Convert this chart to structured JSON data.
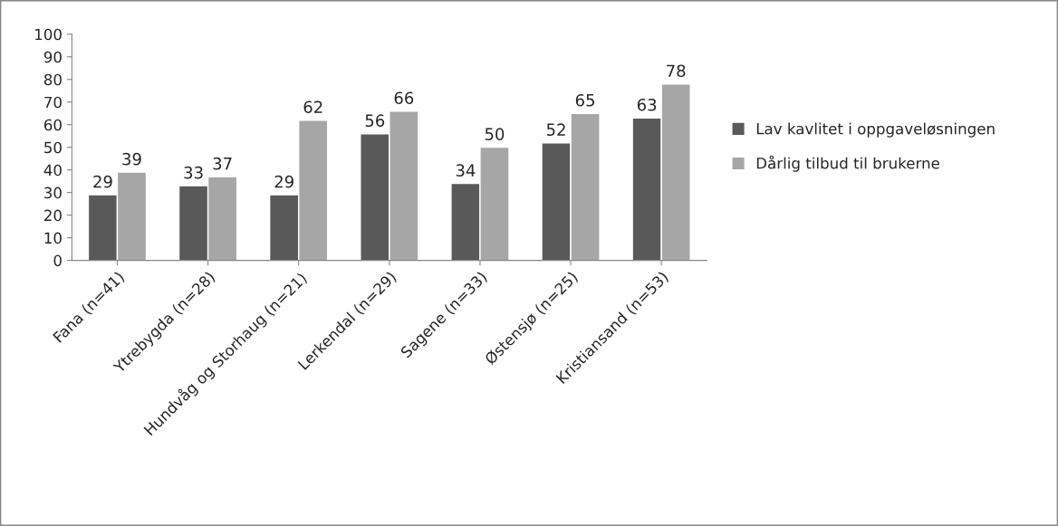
{
  "chart_data": {
    "type": "bar",
    "categories": [
      "Fana (n=41)",
      "Ytrebygda (n=28)",
      "Hundvåg og Storhaug (n=21)",
      "Lerkendal (n=29)",
      "Sagene (n=33)",
      "Østensjø (n=25)",
      "Kristiansand (n=53)"
    ],
    "series": [
      {
        "name": "Lav kavlitet i oppgaveløsningen",
        "color": "#595959",
        "values": [
          29,
          33,
          29,
          56,
          34,
          52,
          63
        ]
      },
      {
        "name": "Dårlig tilbud til brukerne",
        "color": "#a6a6a6",
        "values": [
          39,
          37,
          62,
          66,
          50,
          65,
          78
        ]
      }
    ],
    "ylim": [
      0,
      100
    ],
    "yticks": [
      0,
      10,
      20,
      30,
      40,
      50,
      60,
      70,
      80,
      90,
      100
    ],
    "grid": false,
    "legend": "right",
    "data_labels": true
  }
}
